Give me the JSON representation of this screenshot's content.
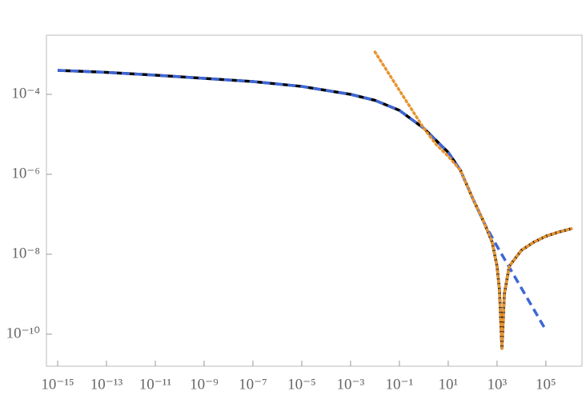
{
  "chart_data": {
    "type": "line",
    "log_x": true,
    "log_y": true,
    "grid": false,
    "xlim": [
      3.47e-16,
      3020000.0
    ],
    "ylim": [
      1.58e-11,
      0.00302
    ],
    "xticks": [
      {
        "value": 1e-15,
        "label": "10⁻¹⁵"
      },
      {
        "value": 1e-13,
        "label": "10⁻¹³"
      },
      {
        "value": 1e-11,
        "label": "10⁻¹¹"
      },
      {
        "value": 1e-09,
        "label": "10⁻⁹"
      },
      {
        "value": 1e-07,
        "label": "10⁻⁷"
      },
      {
        "value": 1e-05,
        "label": "10⁻⁵"
      },
      {
        "value": 0.001,
        "label": "10⁻³"
      },
      {
        "value": 0.1,
        "label": "10⁻¹"
      },
      {
        "value": 10,
        "label": "10¹"
      },
      {
        "value": 1000,
        "label": "10³"
      },
      {
        "value": 100000,
        "label": "10⁵"
      }
    ],
    "yticks": [
      {
        "value": 0.0001,
        "label": "10⁻⁴"
      },
      {
        "value": 1e-06,
        "label": "10⁻⁶"
      },
      {
        "value": 1e-08,
        "label": "10⁻⁸"
      },
      {
        "value": 1e-10,
        "label": "10⁻¹⁰"
      }
    ],
    "series": [
      {
        "color": "#000000",
        "style": "solid",
        "x": [
          1e-15,
          1e-13,
          1e-11,
          1e-09,
          1e-07,
          1e-05,
          0.001,
          0.01,
          0.1,
          1,
          3.16,
          10,
          31.6,
          100,
          316,
          631,
          1000,
          1259,
          1585,
          1995,
          3162,
          10000,
          31600,
          100000,
          316000,
          1120000
        ],
        "values": [
          0.000398,
          0.000355,
          0.000302,
          0.000251,
          0.000209,
          0.000158,
          0.0001,
          7.08e-05,
          3.98e-05,
          1.41e-05,
          7.08e-06,
          3.55e-06,
          1.26e-06,
          2.51e-07,
          5.62e-08,
          2e-08,
          5e-09,
          1.26e-09,
          4.4e-11,
          1e-09,
          5e-09,
          1.26e-08,
          2e-08,
          2.82e-08,
          3.55e-08,
          4.37e-08
        ]
      },
      {
        "color": "#3d66d6",
        "style": "dashed",
        "x": [
          1e-15,
          1e-13,
          1e-11,
          1e-09,
          1e-07,
          1e-05,
          0.001,
          0.01,
          0.1,
          1,
          3.16,
          10,
          31.6,
          100,
          316,
          1000,
          10000,
          100000
        ],
        "values": [
          0.000398,
          0.000355,
          0.000302,
          0.000251,
          0.000209,
          0.000158,
          0.0001,
          7.08e-05,
          3.98e-05,
          1.41e-05,
          7.08e-06,
          3.55e-06,
          1.26e-06,
          2.51e-07,
          5.62e-08,
          1.58e-08,
          1.41e-09,
          1.26e-10
        ]
      },
      {
        "color": "#e8942f",
        "style": "dotted",
        "x": [
          0.01,
          0.1,
          1,
          3.16,
          10,
          31.6,
          100,
          316,
          631,
          1000,
          1259,
          1585,
          1995,
          3162,
          10000,
          31600,
          100000,
          316000,
          1120000
        ],
        "values": [
          0.00115,
          0.000126,
          1.41e-05,
          5.62e-06,
          2.82e-06,
          1.26e-06,
          2.51e-07,
          5.62e-08,
          2e-08,
          5e-09,
          1.26e-09,
          4.4e-11,
          1e-09,
          5e-09,
          1.26e-08,
          2e-08,
          2.82e-08,
          3.55e-08,
          4.37e-08
        ]
      }
    ]
  }
}
